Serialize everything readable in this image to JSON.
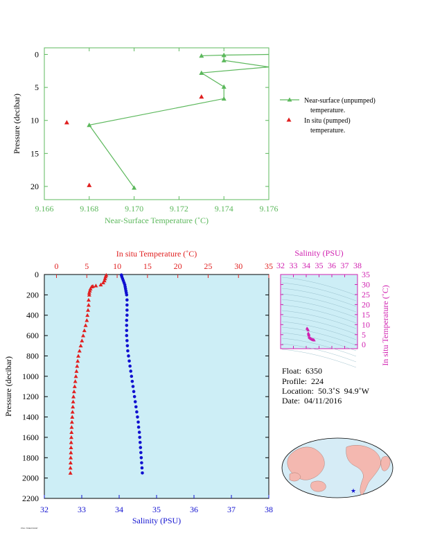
{
  "colors": {
    "green": "#5cb85c",
    "red": "#e02020",
    "blue": "#1010d0",
    "magenta": "#d020b0",
    "plot_bg": "#cdeef6",
    "axis": "#000000",
    "map_land": "#f4b8b0",
    "map_ocean": "#d6ecf6"
  },
  "info": {
    "float": "Float:  6350",
    "profile": "Profile:  224",
    "location": "Location:  50.3˚S  94.9˚W",
    "date": "Date:  04/11/2016"
  },
  "stamp": "PNG TIMESTAMP",
  "chart_data": [
    {
      "type": "line",
      "id": "near-surface",
      "xlabel": "Near-Surface Temperature (˚C)",
      "ylabel": "Pressure (decibar)",
      "xlim": [
        9.166,
        9.176
      ],
      "ylim": [
        22,
        -1
      ],
      "xticks": [
        9.166,
        9.168,
        9.17,
        9.172,
        9.174,
        9.176
      ],
      "xtick_labels": [
        "9.166",
        "9.168",
        "9.170",
        "9.172",
        "9.174",
        "9.176"
      ],
      "yticks": [
        0,
        5,
        10,
        15,
        20
      ],
      "ytick_labels": [
        "0",
        "5",
        "10",
        "15",
        "20"
      ],
      "series": [
        {
          "name": "Near-surface (unpumped) temperature.",
          "legend_lines": [
            "Near-surface (unpumped)",
            "temperature."
          ],
          "marker": "triangle-line",
          "x": [
            9.17,
            9.168,
            9.174,
            9.174,
            9.173,
            9.176,
            9.174,
            9.174,
            9.173,
            9.174,
            9.176
          ],
          "y": [
            20.2,
            10.7,
            6.7,
            4.9,
            2.8,
            1.9,
            0.9,
            0.1,
            0.2,
            0.1,
            0.0
          ]
        },
        {
          "name": "In situ (pumped) temperature.",
          "legend_lines": [
            "In situ (pumped)",
            "temperature."
          ],
          "marker": "triangle",
          "x": [
            9.168,
            9.167,
            9.173
          ],
          "y": [
            19.8,
            10.3,
            6.4
          ]
        }
      ]
    },
    {
      "type": "scatter",
      "id": "profile",
      "ylabel": "Pressure (decibar)",
      "ylim": [
        2200,
        0
      ],
      "yticks": [
        0,
        200,
        400,
        600,
        800,
        1000,
        1200,
        1400,
        1600,
        1800,
        2000,
        2200
      ],
      "ytick_labels": [
        "0",
        "200",
        "400",
        "600",
        "800",
        "1000",
        "1200",
        "1400",
        "1600",
        "1800",
        "2000",
        "2200"
      ],
      "top_axis": {
        "label": "In situ Temperature (˚C)",
        "lim": [
          -2,
          35
        ],
        "ticks": [
          0,
          5,
          10,
          15,
          20,
          25,
          30,
          35
        ],
        "tick_labels": [
          "0",
          "5",
          "10",
          "15",
          "20",
          "25",
          "30",
          "35"
        ]
      },
      "bottom_axis": {
        "label": "Salinity (PSU)",
        "lim": [
          32,
          38
        ],
        "ticks": [
          32,
          33,
          34,
          35,
          36,
          37,
          38
        ],
        "tick_labels": [
          "32",
          "33",
          "34",
          "35",
          "36",
          "37",
          "38"
        ]
      },
      "temperature": {
        "pressure": [
          5,
          20,
          40,
          60,
          80,
          100,
          110,
          115,
          120,
          140,
          160,
          180,
          200,
          250,
          300,
          350,
          400,
          450,
          500,
          550,
          600,
          650,
          700,
          750,
          800,
          850,
          900,
          950,
          1000,
          1050,
          1100,
          1150,
          1200,
          1250,
          1300,
          1350,
          1400,
          1450,
          1500,
          1550,
          1600,
          1650,
          1700,
          1750,
          1800,
          1850,
          1900,
          1950
        ],
        "values": [
          8.2,
          8.1,
          8.0,
          7.9,
          7.7,
          7.3,
          6.5,
          6.0,
          5.8,
          5.6,
          5.5,
          5.4,
          5.4,
          5.3,
          5.3,
          5.2,
          5.1,
          5.0,
          4.8,
          4.6,
          4.4,
          4.2,
          4.0,
          3.8,
          3.6,
          3.5,
          3.4,
          3.3,
          3.2,
          3.1,
          3.0,
          2.9,
          2.8,
          2.75,
          2.7,
          2.65,
          2.6,
          2.55,
          2.5,
          2.48,
          2.45,
          2.42,
          2.4,
          2.38,
          2.35,
          2.33,
          2.3,
          2.3
        ]
      },
      "salinity": {
        "pressure": [
          5,
          20,
          40,
          60,
          80,
          100,
          120,
          140,
          160,
          180,
          200,
          250,
          300,
          350,
          400,
          450,
          500,
          550,
          600,
          650,
          700,
          750,
          800,
          850,
          900,
          950,
          1000,
          1050,
          1100,
          1150,
          1200,
          1250,
          1300,
          1350,
          1400,
          1450,
          1500,
          1550,
          1600,
          1650,
          1700,
          1750,
          1800,
          1850,
          1900,
          1950
        ],
        "values": [
          34.06,
          34.07,
          34.09,
          34.11,
          34.13,
          34.15,
          34.16,
          34.17,
          34.18,
          34.19,
          34.2,
          34.21,
          34.21,
          34.21,
          34.21,
          34.2,
          34.2,
          34.2,
          34.2,
          34.21,
          34.22,
          34.23,
          34.25,
          34.27,
          34.29,
          34.31,
          34.33,
          34.35,
          34.37,
          34.39,
          34.41,
          34.43,
          34.45,
          34.47,
          34.49,
          34.51,
          34.52,
          34.54,
          34.55,
          34.56,
          34.57,
          34.58,
          34.59,
          34.6,
          34.61,
          34.62
        ]
      }
    },
    {
      "type": "scatter",
      "id": "ts-diagram",
      "xlabel": "Salinity (PSU)",
      "ylabel": "In situ Temperature (˚C)",
      "xlim": [
        32,
        38
      ],
      "ylim": [
        -2,
        35
      ],
      "xticks": [
        32,
        33,
        34,
        35,
        36,
        37,
        38
      ],
      "xtick_labels": [
        "32",
        "33",
        "34",
        "35",
        "36",
        "37",
        "38"
      ],
      "yticks": [
        0,
        5,
        10,
        15,
        20,
        25,
        30,
        35
      ],
      "ytick_labels": [
        "0",
        "5",
        "10",
        "15",
        "20",
        "25",
        "30",
        "35"
      ],
      "points": {
        "salinity": [
          34.06,
          34.09,
          34.13,
          34.15,
          34.16,
          34.18,
          34.2,
          34.21,
          34.2,
          34.2,
          34.22,
          34.25,
          34.29,
          34.33,
          34.37,
          34.41,
          34.45,
          34.49,
          34.52,
          34.55,
          34.57,
          34.59,
          34.61,
          34.62
        ],
        "temperature": [
          8.2,
          8.0,
          7.7,
          7.3,
          5.8,
          5.4,
          5.4,
          5.3,
          5.1,
          4.8,
          4.0,
          3.6,
          3.4,
          3.2,
          3.0,
          2.8,
          2.7,
          2.6,
          2.5,
          2.45,
          2.4,
          2.35,
          2.3,
          2.3
        ]
      }
    }
  ]
}
